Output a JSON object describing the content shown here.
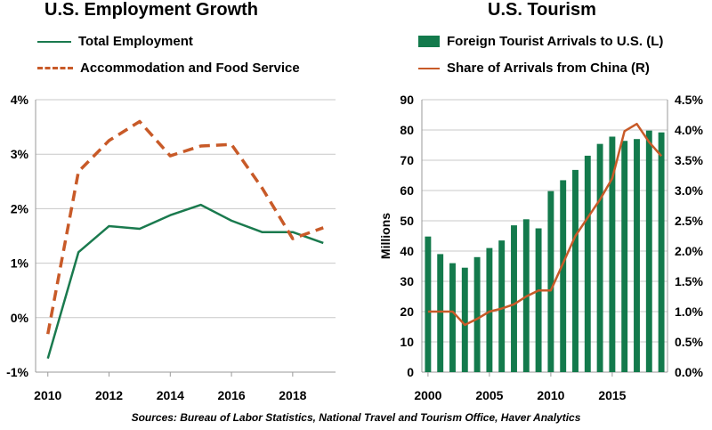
{
  "source": "Sources: Bureau of Labor Statistics, National Travel and Tourism Office, Haver Analytics",
  "chart_data": [
    {
      "type": "line",
      "title": "U.S. Employment Growth",
      "x": [
        2010,
        2011,
        2012,
        2013,
        2014,
        2015,
        2016,
        2017,
        2018,
        2019
      ],
      "xticks": [
        "2010",
        "2012",
        "2014",
        "2016",
        "2018"
      ],
      "yticks": [
        "-1%",
        "0%",
        "1%",
        "2%",
        "3%",
        "4%"
      ],
      "ylim": [
        -1,
        4
      ],
      "grid": true,
      "legend": "top-left",
      "series": [
        {
          "name": "Total Employment",
          "color": "#1a7a4e",
          "style": "solid",
          "values": [
            -0.75,
            1.2,
            1.68,
            1.63,
            1.88,
            2.07,
            1.78,
            1.57,
            1.57,
            1.37
          ]
        },
        {
          "name": "Accommodation and Food Service",
          "color": "#c85a28",
          "style": "dashed",
          "values": [
            -0.3,
            2.68,
            3.25,
            3.6,
            2.97,
            3.15,
            3.18,
            2.38,
            1.45,
            1.65
          ]
        }
      ]
    },
    {
      "type": "bar",
      "title": "U.S. Tourism",
      "ylabel": "Millions",
      "x": [
        2000,
        2001,
        2002,
        2003,
        2004,
        2005,
        2006,
        2007,
        2008,
        2009,
        2010,
        2011,
        2012,
        2013,
        2014,
        2015,
        2016,
        2017,
        2018,
        2019
      ],
      "xticks": [
        "2000",
        "2005",
        "2010",
        "2015"
      ],
      "yticks_left": [
        "0",
        "10",
        "20",
        "30",
        "40",
        "50",
        "60",
        "70",
        "80",
        "90"
      ],
      "ylim_left": [
        0,
        90
      ],
      "yticks_right": [
        "0.0%",
        "0.5%",
        "1.0%",
        "1.5%",
        "2.0%",
        "2.5%",
        "3.0%",
        "3.5%",
        "4.0%",
        "4.5%"
      ],
      "ylim_right": [
        0,
        4.5
      ],
      "grid": true,
      "legend": "top",
      "series": [
        {
          "name": "Foreign Tourist Arrivals to U.S. (L)",
          "axis": "left",
          "color": "#137a4c",
          "values": [
            44.8,
            39,
            36,
            34.5,
            38,
            41,
            43.5,
            48.5,
            50.5,
            47.5,
            59.8,
            63.4,
            66.8,
            71.5,
            75.4,
            77.8,
            76.4,
            77,
            79.8,
            79.2
          ]
        },
        {
          "name": "Share of Arrivals from China (R)",
          "axis": "right",
          "color": "#c85a28",
          "values": [
            1.0,
            1.0,
            1.0,
            0.78,
            0.88,
            1.0,
            1.05,
            1.12,
            1.25,
            1.35,
            1.35,
            1.8,
            2.25,
            2.55,
            2.85,
            3.2,
            3.98,
            4.1,
            3.8,
            3.57
          ]
        }
      ]
    }
  ]
}
